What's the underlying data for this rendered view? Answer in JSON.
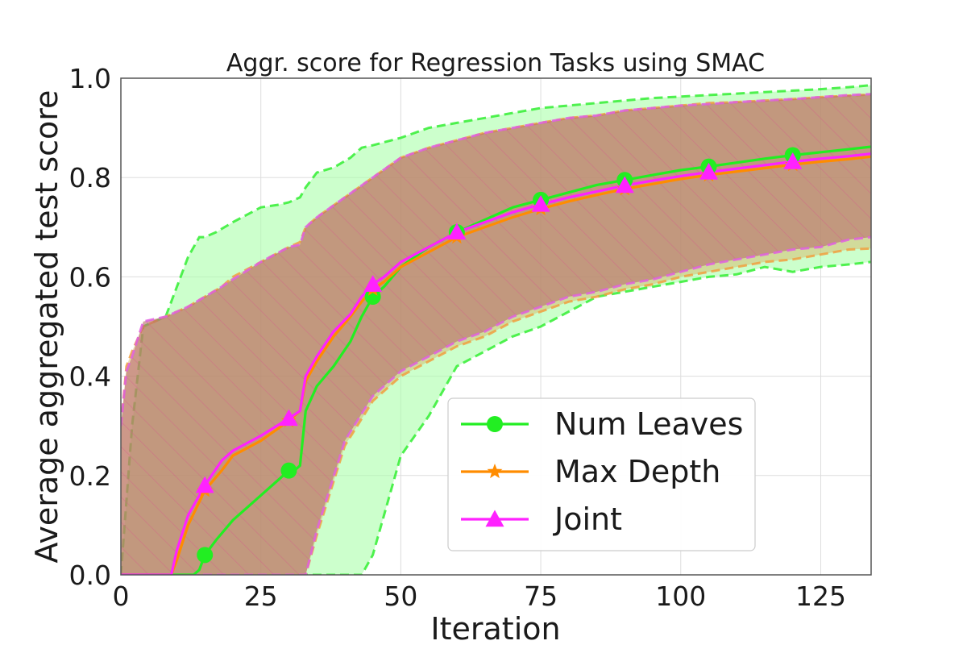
{
  "chart_data": {
    "type": "line",
    "title": "Aggr. score for Regression Tasks using SMAC",
    "xlabel": "Iteration",
    "ylabel": "Average aggregated test score",
    "xlim": [
      0,
      134
    ],
    "ylim": [
      0,
      1.0
    ],
    "xticks": [
      0,
      25,
      50,
      75,
      100,
      125
    ],
    "yticks": [
      0.0,
      0.2,
      0.4,
      0.6,
      0.8,
      1.0
    ],
    "xtick_labels": [
      "0",
      "25",
      "50",
      "75",
      "100",
      "125"
    ],
    "ytick_labels": [
      "0.0",
      "0.2",
      "0.4",
      "0.6",
      "0.8",
      "1.0"
    ],
    "grid": true,
    "legend_position": "lower-right",
    "series": [
      {
        "name": "Num Leaves",
        "color": "#22ee22",
        "marker": "circle",
        "marker_x": [
          15,
          30,
          45,
          60,
          75,
          90,
          105,
          120
        ],
        "x": [
          0,
          8,
          13,
          14,
          15,
          17,
          20,
          25,
          28,
          30,
          31,
          32,
          33,
          35,
          38,
          41,
          43,
          45,
          47,
          50,
          55,
          60,
          65,
          70,
          75,
          80,
          85,
          90,
          95,
          100,
          105,
          110,
          115,
          120,
          125,
          130,
          134
        ],
        "y": [
          0,
          0,
          0,
          0.01,
          0.04,
          0.07,
          0.11,
          0.16,
          0.19,
          0.21,
          0.21,
          0.22,
          0.33,
          0.38,
          0.42,
          0.47,
          0.52,
          0.56,
          0.58,
          0.62,
          0.66,
          0.69,
          0.715,
          0.74,
          0.755,
          0.77,
          0.785,
          0.795,
          0.805,
          0.815,
          0.822,
          0.83,
          0.838,
          0.845,
          0.851,
          0.857,
          0.862
        ]
      },
      {
        "name": "Max Depth",
        "color": "#ff8c00",
        "marker": "star",
        "marker_x": [
          15,
          30,
          45,
          60,
          75,
          90,
          105,
          120
        ],
        "x": [
          0,
          8,
          9,
          10,
          12,
          15,
          18,
          20,
          25,
          30,
          32,
          33,
          35,
          38,
          41,
          43,
          45,
          47,
          50,
          55,
          60,
          65,
          70,
          75,
          80,
          85,
          90,
          95,
          100,
          105,
          110,
          115,
          120,
          125,
          130,
          134
        ],
        "y": [
          0,
          0,
          0,
          0.03,
          0.1,
          0.17,
          0.21,
          0.24,
          0.27,
          0.31,
          0.33,
          0.39,
          0.43,
          0.48,
          0.52,
          0.55,
          0.575,
          0.59,
          0.62,
          0.65,
          0.68,
          0.7,
          0.72,
          0.737,
          0.752,
          0.765,
          0.777,
          0.787,
          0.797,
          0.805,
          0.812,
          0.819,
          0.826,
          0.832,
          0.837,
          0.842
        ]
      },
      {
        "name": "Joint",
        "color": "#ff22ff",
        "marker": "triangle",
        "marker_x": [
          15,
          30,
          45,
          60,
          75,
          90,
          105,
          120
        ],
        "x": [
          0,
          7,
          9,
          10,
          12,
          15,
          18,
          20,
          25,
          30,
          32,
          33,
          35,
          38,
          41,
          43,
          45,
          47,
          50,
          55,
          60,
          65,
          70,
          75,
          80,
          85,
          90,
          95,
          100,
          105,
          110,
          115,
          120,
          125,
          130,
          134
        ],
        "y": [
          0,
          0,
          0,
          0.05,
          0.12,
          0.18,
          0.23,
          0.25,
          0.28,
          0.315,
          0.33,
          0.4,
          0.44,
          0.49,
          0.525,
          0.56,
          0.585,
          0.6,
          0.63,
          0.66,
          0.69,
          0.71,
          0.73,
          0.746,
          0.76,
          0.772,
          0.784,
          0.794,
          0.803,
          0.811,
          0.818,
          0.825,
          0.832,
          0.838,
          0.843,
          0.848
        ]
      }
    ],
    "bands": [
      {
        "name": "Num Leaves",
        "fill": "#aaffaa",
        "edge": "#33ee33",
        "hatch": false,
        "x": [
          0,
          2,
          4,
          8,
          10,
          12,
          14,
          15,
          17,
          20,
          25,
          28,
          30,
          32,
          33,
          35,
          38,
          41,
          43,
          45,
          50,
          55,
          60,
          65,
          70,
          75,
          80,
          85,
          90,
          95,
          100,
          105,
          110,
          115,
          120,
          125,
          130,
          134
        ],
        "upper": [
          0,
          0.3,
          0.5,
          0.52,
          0.58,
          0.64,
          0.68,
          0.68,
          0.69,
          0.71,
          0.74,
          0.745,
          0.75,
          0.76,
          0.78,
          0.81,
          0.82,
          0.84,
          0.86,
          0.865,
          0.88,
          0.9,
          0.91,
          0.92,
          0.93,
          0.94,
          0.945,
          0.95,
          0.955,
          0.96,
          0.963,
          0.966,
          0.969,
          0.972,
          0.975,
          0.978,
          0.982,
          0.986
        ],
        "lower": [
          0,
          0,
          0,
          0,
          0,
          0,
          0,
          0,
          0,
          0,
          0,
          0,
          0,
          0,
          0,
          0,
          0,
          0,
          0,
          0.04,
          0.24,
          0.32,
          0.42,
          0.45,
          0.48,
          0.5,
          0.53,
          0.56,
          0.57,
          0.58,
          0.59,
          0.6,
          0.605,
          0.62,
          0.61,
          0.62,
          0.625,
          0.63
        ]
      },
      {
        "name": "Max Depth",
        "fill": "#d8b060",
        "edge": "#f0a040",
        "hatch": false,
        "x": [
          0,
          1,
          2,
          4,
          8,
          12,
          15,
          18,
          20,
          25,
          30,
          32,
          33,
          35,
          40,
          45,
          50,
          55,
          60,
          65,
          70,
          75,
          80,
          85,
          90,
          95,
          100,
          105,
          110,
          115,
          120,
          125,
          130,
          134
        ],
        "upper": [
          0.3,
          0.42,
          0.45,
          0.5,
          0.52,
          0.54,
          0.56,
          0.58,
          0.6,
          0.63,
          0.66,
          0.67,
          0.7,
          0.72,
          0.76,
          0.8,
          0.84,
          0.86,
          0.875,
          0.89,
          0.9,
          0.91,
          0.92,
          0.925,
          0.935,
          0.94,
          0.945,
          0.95,
          0.952,
          0.955,
          0.958,
          0.962,
          0.965,
          0.967
        ],
        "lower": [
          0,
          0,
          0,
          0,
          0,
          0,
          0,
          0,
          0,
          0,
          0,
          0,
          0,
          0.08,
          0.26,
          0.35,
          0.4,
          0.43,
          0.46,
          0.48,
          0.51,
          0.53,
          0.55,
          0.56,
          0.575,
          0.585,
          0.6,
          0.61,
          0.62,
          0.63,
          0.635,
          0.645,
          0.655,
          0.657
        ]
      },
      {
        "name": "Joint",
        "fill": "#b86b6b",
        "edge": "#e060e0",
        "hatch": true,
        "x": [
          0,
          1,
          2,
          4,
          8,
          12,
          15,
          18,
          20,
          25,
          30,
          32,
          33,
          35,
          40,
          45,
          50,
          55,
          60,
          65,
          70,
          75,
          80,
          85,
          90,
          95,
          100,
          105,
          110,
          115,
          120,
          125,
          130,
          134
        ],
        "upper": [
          0.3,
          0.41,
          0.44,
          0.51,
          0.52,
          0.54,
          0.56,
          0.58,
          0.595,
          0.63,
          0.66,
          0.665,
          0.7,
          0.72,
          0.76,
          0.8,
          0.84,
          0.86,
          0.875,
          0.89,
          0.9,
          0.91,
          0.92,
          0.925,
          0.935,
          0.94,
          0.945,
          0.948,
          0.952,
          0.955,
          0.958,
          0.962,
          0.966,
          0.968
        ],
        "lower": [
          0,
          0,
          0,
          0,
          0,
          0,
          0,
          0,
          0,
          0,
          0,
          0,
          0,
          0.09,
          0.27,
          0.36,
          0.41,
          0.44,
          0.47,
          0.49,
          0.52,
          0.54,
          0.56,
          0.57,
          0.585,
          0.595,
          0.61,
          0.625,
          0.635,
          0.645,
          0.655,
          0.66,
          0.675,
          0.68
        ]
      }
    ]
  }
}
